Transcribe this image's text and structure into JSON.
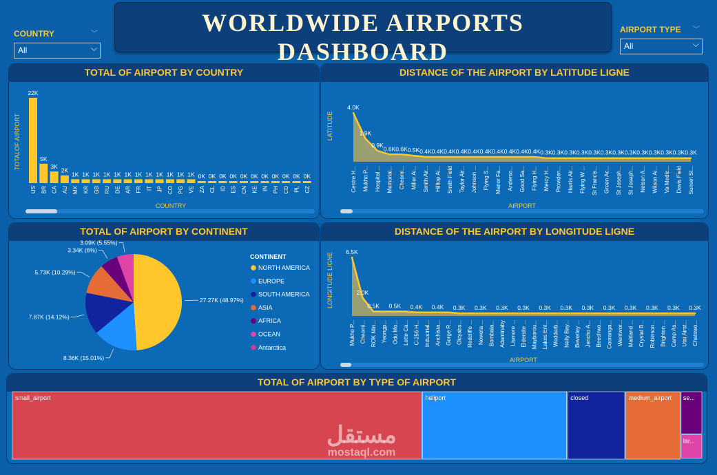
{
  "dashboard": {
    "title": "WORLDWIDE  AIRPORTS  DASHBOARD",
    "slicer_country": {
      "label": "COUNTRY",
      "value": "All"
    },
    "slicer_type": {
      "label": "AIRPORT TYPE",
      "value": "All"
    },
    "watermark": {
      "arabic": "مستقل",
      "latin": "mostaql.com"
    }
  },
  "colors": {
    "accent": "#ffc72c",
    "background": "#0a5fa8",
    "header": "#0d3f7a"
  },
  "chart_data": [
    {
      "id": "by_country",
      "type": "bar",
      "title": "TOTAL OF AIRPORT BY COUNTRY",
      "xlabel": "COUNTRY",
      "ylabel": "TOTALOF AIRPORT",
      "categories": [
        "US",
        "BR",
        "CA",
        "AU",
        "MX",
        "KR",
        "GB",
        "RU",
        "DE",
        "AR",
        "FR",
        "IT",
        "JP",
        "CO",
        "PG",
        "VE",
        "ZA",
        "CL",
        "ID",
        "ES",
        "CN",
        "KE",
        "IN",
        "PH",
        "CD",
        "PL",
        "CZ"
      ],
      "values": [
        22000,
        5000,
        3000,
        2000,
        1000,
        1000,
        1000,
        1000,
        1000,
        1000,
        1000,
        1000,
        1000,
        1000,
        1000,
        1000,
        300,
        300,
        300,
        300,
        300,
        300,
        300,
        300,
        300,
        300,
        300
      ],
      "labels": [
        "22K",
        "5K",
        "3K",
        "2K",
        "1K",
        "1K",
        "1K",
        "1K",
        "1K",
        "1K",
        "1K",
        "1K",
        "1K",
        "1K",
        "1K",
        "1K",
        "0K",
        "0K",
        "0K",
        "0K",
        "0K",
        "0K",
        "0K",
        "0K",
        "0K",
        "0K",
        "0K"
      ],
      "ylim": [
        0,
        22000
      ]
    },
    {
      "id": "by_latitude",
      "type": "area",
      "title": "DISTANCE OF THE AIRPORT BY LATITUDE LIGNE",
      "xlabel": "AIRPORT",
      "ylabel": "LATITUDE",
      "categories": [
        "Centre H...",
        "Mukho P...",
        "Hospital ...",
        "Memorial...",
        "Cheomi...",
        "Miller Ai...",
        "Smith Air...",
        "Hilltop Ai...",
        "Smith Field",
        "Taylor Air...",
        "Johnson ...",
        "Flying S...",
        "Manor Fa...",
        "Anderso...",
        "Good Sa...",
        "Flying H...",
        "Mercy H...",
        "Providen...",
        "Harris Air...",
        "Flying W ...",
        "St Francis...",
        "Green Ac...",
        "St Joseph...",
        "St Joseph...",
        "Nelson A...",
        "Wilson Ai...",
        "Va Medic...",
        "Davis Field",
        "Sunset St..."
      ],
      "values": [
        4000,
        1900,
        900,
        600,
        600,
        500,
        400,
        400,
        400,
        400,
        400,
        400,
        400,
        400,
        400,
        400,
        300,
        300,
        300,
        300,
        300,
        300,
        300,
        300,
        300,
        300,
        300,
        300,
        300
      ],
      "labels": [
        "4.0K",
        "1.9K",
        "0.9K",
        "0.6K",
        "0.6K",
        "0.5K",
        "0.4K",
        "0.4K",
        "0.4K",
        "0.4K",
        "0.4K",
        "0.4K",
        "0.4K",
        "0.4K",
        "0.4K",
        "0.4K",
        "0.3K",
        "0.3K",
        "0.3K",
        "0.3K",
        "0.3K",
        "0.3K",
        "0.3K",
        "0.3K",
        "0.3K",
        "0.3K",
        "0.3K",
        "0.3K",
        "0.3K"
      ],
      "ylim": [
        0,
        4000
      ]
    },
    {
      "id": "by_continent",
      "type": "pie",
      "title": "TOTAL OF AIRPORT BY CONTINENT",
      "legend_title": "CONTINENT",
      "legend_position": "right",
      "slices": [
        {
          "name": "NORTH AMERICA",
          "value": 27270,
          "label": "27.27K (48.97%)",
          "color": "#ffc72c"
        },
        {
          "name": "EUROPE",
          "value": 8360,
          "label": "8.36K (15.01%)",
          "color": "#1e90ff"
        },
        {
          "name": "SOUTH AMERICA",
          "value": 7870,
          "label": "7.87K (14.12%)",
          "color": "#12239e"
        },
        {
          "name": "ASIA",
          "value": 5730,
          "label": "5.73K (10.29%)",
          "color": "#e66c37"
        },
        {
          "name": "AFRICA",
          "value": 3340,
          "label": "3.34K (6%)",
          "color": "#6b007b"
        },
        {
          "name": "OCEAN",
          "value": 3090,
          "label": "3.09K (5.55%)",
          "color": "#e044a7"
        },
        {
          "name": "Antarctica",
          "value": 20,
          "label": "",
          "color": "#c83d95"
        }
      ]
    },
    {
      "id": "by_longitude",
      "type": "area",
      "title": "DISTANCE OF THE AIRPORT BY LONGITUDE LIGNE",
      "xlabel": "AIRPORT",
      "ylabel": "LONGITUDE LIGNE",
      "categories": [
        "Mukho P...",
        "Cheomi...",
        "ROK Min...",
        "Yeongp...",
        "Odu Mo...",
        "Lotte Ca...",
        "C-256 H...",
        "Industrial...",
        "Anchista...",
        "Gorge R...",
        "Oktyabs...",
        "Redcliffe ...",
        "Noweta ...",
        "Bombala...",
        "Adaminaby",
        "Lismore ...",
        "Elderslie ...",
        "Mayborou...",
        "Lakes Ent...",
        "Wedderb...",
        "Nelly Bay...",
        "Beverley ...",
        "Jericho A...",
        "Beechwo...",
        "Cooranga...",
        "Wentwor...",
        "Maitland ...",
        "Crystal B...",
        "Robinson...",
        "Brighton ...",
        "Camp As...",
        "Utai Airst...",
        "Chatswo..."
      ],
      "values": [
        6500,
        2000,
        500,
        500,
        500,
        500,
        400,
        400,
        400,
        400,
        300,
        300,
        300,
        300,
        300,
        300,
        300,
        300,
        300,
        300,
        300,
        300,
        300,
        300,
        300,
        300,
        300,
        300,
        300,
        300,
        300,
        300,
        300
      ],
      "labels": [
        "6.5K",
        "2.0K",
        "0.5K",
        "",
        "0.5K",
        "",
        "0.4K",
        "",
        "0.4K",
        "",
        "0.3K",
        "",
        "0.3K",
        "",
        "0.3K",
        "",
        "0.3K",
        "",
        "0.3K",
        "",
        "0.3K",
        "",
        "0.3K",
        "",
        "0.3K",
        "",
        "0.3K",
        "",
        "0.3K",
        "",
        "0.3K",
        "",
        "0.3K"
      ],
      "ylim": [
        0,
        6500
      ]
    },
    {
      "id": "by_type",
      "type": "treemap",
      "title": "TOTAL OF AIRPORT BY TYPE OF AIRPORT",
      "items": [
        {
          "name": "small_airport",
          "label": "small_airport",
          "value": 33965,
          "color": "#d64550"
        },
        {
          "name": "heliport",
          "label": "heliport",
          "value": 12029,
          "color": "#1e90ff"
        },
        {
          "name": "closed",
          "label": "closed",
          "value": 4810,
          "color": "#12239e"
        },
        {
          "name": "medium_airport",
          "label": "medium_airport",
          "value": 4584,
          "color": "#e66c37"
        },
        {
          "name": "seaplane_base",
          "label": "se...",
          "value": 1100,
          "color": "#6b007b"
        },
        {
          "name": "large_airport",
          "label": "lar...",
          "value": 620,
          "color": "#e044a7"
        }
      ]
    }
  ]
}
